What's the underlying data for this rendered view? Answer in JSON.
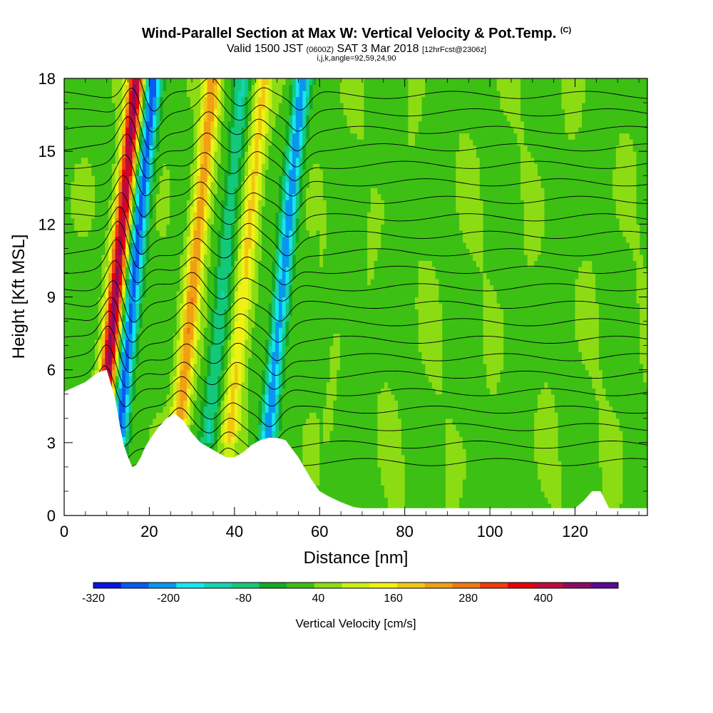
{
  "chart_data": {
    "type": "heatmap",
    "title": "Wind-Parallel Section at Max W: Vertical Velocity & Pot.Temp.",
    "title_mark": "(C)",
    "subtitle_prefix": "Valid 1500 JST",
    "subtitle_utc": "(0600Z)",
    "subtitle_date": "SAT 3 Mar 2018",
    "subtitle_fcst": "[12hrFcst@2306z]",
    "subtitle2": "i,j,k,angle=92,59,24,90",
    "xlabel": "Distance [nm]",
    "ylabel": "Height [Kft MSL]",
    "xlim": [
      0,
      137
    ],
    "ylim": [
      0,
      18
    ],
    "x_ticks": [
      0,
      20,
      40,
      60,
      80,
      100,
      120
    ],
    "y_ticks": [
      0,
      3,
      6,
      9,
      12,
      15,
      18
    ],
    "x_tick_labels": [
      "0",
      "20",
      "40",
      "60",
      "80",
      "100",
      "120"
    ],
    "y_tick_labels": [
      "0",
      "3",
      "6",
      "9",
      "12",
      "15",
      "18"
    ],
    "colorbar": {
      "label": "Vertical Velocity [cm/s]",
      "tick_labels": [
        "-320",
        "-200",
        "-80",
        "40",
        "160",
        "280",
        "400"
      ],
      "tick_values": [
        -320,
        -200,
        -80,
        40,
        160,
        280,
        400
      ],
      "range": [
        -320,
        520
      ],
      "colors": [
        "#0a14e6",
        "#0a5af0",
        "#0a96f0",
        "#14e6f0",
        "#14d2b4",
        "#14c87a",
        "#14aa28",
        "#3cc014",
        "#8cdc14",
        "#c8f014",
        "#f0f014",
        "#f0c814",
        "#f0a014",
        "#f07814",
        "#f03c0a",
        "#e6000a",
        "#be0a3c",
        "#8c0a64",
        "#5a0a96"
      ]
    },
    "features": [
      {
        "x": 12,
        "w_cms": 420,
        "label": "updraft"
      },
      {
        "x": 16,
        "w_cms": -280,
        "label": "downdraft"
      },
      {
        "x": 30,
        "w_cms": 220,
        "label": "updraft"
      },
      {
        "x": 37,
        "w_cms": -120,
        "label": "downdraft"
      },
      {
        "x": 42,
        "w_cms": 150,
        "label": "updraft"
      },
      {
        "x": 51,
        "w_cms": -240,
        "label": "downdraft"
      }
    ],
    "terrain_kft": {
      "x": [
        0,
        5,
        8,
        10,
        11,
        12,
        13,
        14,
        15,
        16,
        17,
        18,
        19,
        20,
        22,
        24,
        26,
        28,
        30,
        32,
        34,
        36,
        38,
        40,
        42,
        44,
        46,
        48,
        50,
        52,
        55,
        58,
        60,
        62,
        65,
        68,
        70,
        80,
        100,
        120,
        122,
        124,
        126,
        128,
        137
      ],
      "y": [
        5.1,
        5.5,
        5.9,
        6.0,
        5.4,
        4.8,
        3.8,
        2.9,
        2.4,
        2.0,
        2.1,
        2.4,
        2.8,
        3.1,
        3.6,
        4.0,
        4.2,
        3.9,
        3.4,
        3.0,
        2.8,
        2.6,
        2.4,
        2.4,
        2.6,
        2.9,
        3.1,
        3.2,
        3.2,
        3.1,
        2.4,
        1.5,
        1.0,
        0.8,
        0.55,
        0.35,
        0.3,
        0.3,
        0.3,
        0.3,
        0.6,
        1.0,
        1.0,
        0.3,
        0.3
      ]
    },
    "theta_contours": {
      "count": 22,
      "base_kft": 2.2,
      "spacing_kft": 0.72
    }
  }
}
